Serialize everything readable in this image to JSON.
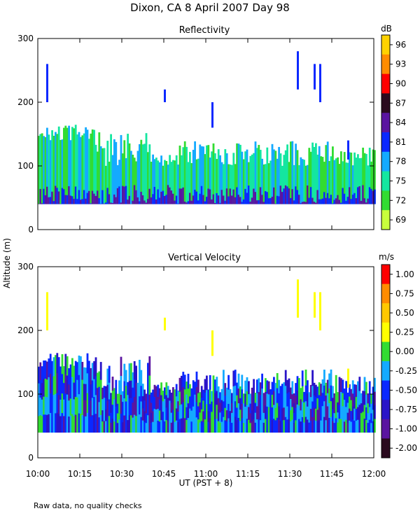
{
  "title": "Dixon, CA   8 April 2007   Day   98",
  "footnote": "Raw data, no quality checks",
  "shared_y_label": "Altitude (m)",
  "x_label": "UT  (PST + 8)",
  "chart_data": [
    {
      "type": "heatmap",
      "title": "Reflectivity",
      "x_range_minutes": [
        0,
        120
      ],
      "x_ticks": [
        "10:00",
        "10:15",
        "10:30",
        "10:45",
        "11:00",
        "11:15",
        "11:30",
        "11:45",
        "12:00"
      ],
      "ylim": [
        0,
        300
      ],
      "y_ticks": [
        0,
        100,
        200,
        300
      ],
      "ylabel": "Altitude (m)",
      "xlabel": "UT  (PST + 8)",
      "colorbar": {
        "unit": "dB",
        "ticks": [
          "96",
          "93",
          "90",
          "87",
          "84",
          "81",
          "78",
          "75",
          "72",
          "69"
        ],
        "colors": [
          "#ffd200",
          "#ff8c00",
          "#ff0000",
          "#2a0a1e",
          "#5a14a0",
          "#0a28ff",
          "#14aaff",
          "#14e6a0",
          "#32dc32",
          "#c8ff3c"
        ]
      }
    },
    {
      "type": "heatmap",
      "title": "Vertical Velocity",
      "x_range_minutes": [
        0,
        120
      ],
      "x_ticks": [
        "10:00",
        "10:15",
        "10:30",
        "10:45",
        "11:00",
        "11:15",
        "11:30",
        "11:45",
        "12:00"
      ],
      "ylim": [
        0,
        300
      ],
      "y_ticks": [
        0,
        100,
        200,
        300
      ],
      "ylabel": "Altitude (m)",
      "xlabel": "UT  (PST + 8)",
      "colorbar": {
        "unit": "m/s",
        "ticks": [
          "1.00",
          "0.75",
          "0.50",
          "0.25",
          "0.00",
          "-0.25",
          "-0.50",
          "-0.75",
          "-1.00",
          "-2.00"
        ],
        "colors": [
          "#ff0000",
          "#ff8c00",
          "#ffc800",
          "#ffff00",
          "#32dc32",
          "#14aaff",
          "#0a28ff",
          "#2a14c8",
          "#5a14a0",
          "#2a0a1e"
        ]
      }
    }
  ]
}
